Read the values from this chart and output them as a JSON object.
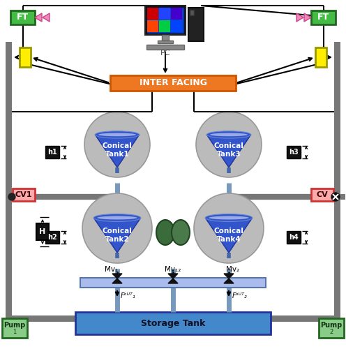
{
  "bg_color": "#ffffff",
  "frame_color": "#777777",
  "storage_tank_color": "#4488cc",
  "storage_tank_label": "Storage Tank",
  "pump_color": "#88cc88",
  "pump_edge": "#226622",
  "pump_label": "Pump",
  "ft_color": "#44bb44",
  "ft_edge": "#226622",
  "ft_label": "FT",
  "yellow_box_color": "#ffee00",
  "yellow_box_edge": "#999900",
  "interfacing_color": "#ee7722",
  "interfacing_label": "INTER FACING",
  "pc_label": "PC",
  "cv1_color": "#ffaaaa",
  "cv1_label": "CV1",
  "cv_color": "#ffaaaa",
  "cv_label": "CV",
  "conical_gray": "#bbbbbb",
  "conical_fill": "#3355cc",
  "tank_labels": [
    "Conical\nTank1",
    "Conical\nTank2",
    "Conical\nTank3",
    "Conical\nTank4"
  ],
  "valve_color": "#111111",
  "pipe_blue": "#aabbee",
  "pipe_blue_edge": "#5577aa",
  "mv1_label": "Mv₁",
  "mv2_label": "Mv₂",
  "mv12_label": "Mv₁₂",
  "fout1_label": "Fᵒᵁᵀ₁",
  "fout2_label": "Fᵒᵁᵀ₂",
  "sensor_color": "#ee88bb",
  "sensor_edge": "#cc4488"
}
